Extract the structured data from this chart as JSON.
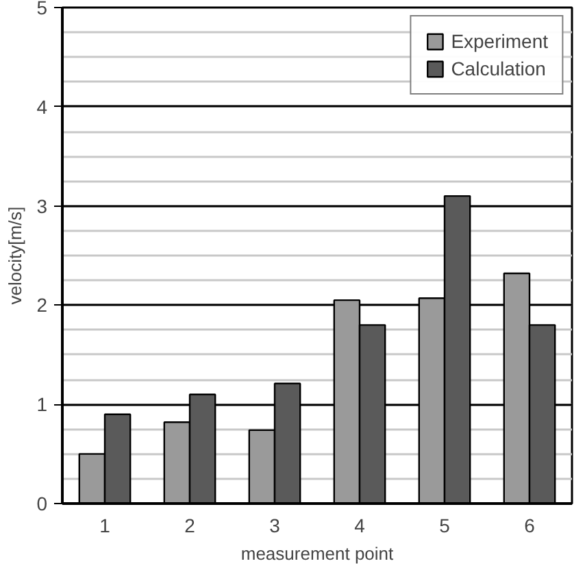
{
  "chart_data": {
    "type": "bar",
    "xlabel": "measurement point",
    "ylabel": "velocity[m/s]",
    "categories": [
      "1",
      "2",
      "3",
      "4",
      "5",
      "6"
    ],
    "series": [
      {
        "name": "Experiment",
        "color": "#9a9a9a",
        "values": [
          0.5,
          0.82,
          0.74,
          2.05,
          2.07,
          2.32
        ]
      },
      {
        "name": "Calculation",
        "color": "#5a5a5a",
        "values": [
          0.9,
          1.1,
          1.21,
          1.8,
          3.1,
          1.8
        ]
      }
    ],
    "ylim": [
      0,
      5
    ],
    "yticks": [
      0,
      1,
      2,
      3,
      4,
      5
    ],
    "grid": "y",
    "legend": "top right"
  }
}
